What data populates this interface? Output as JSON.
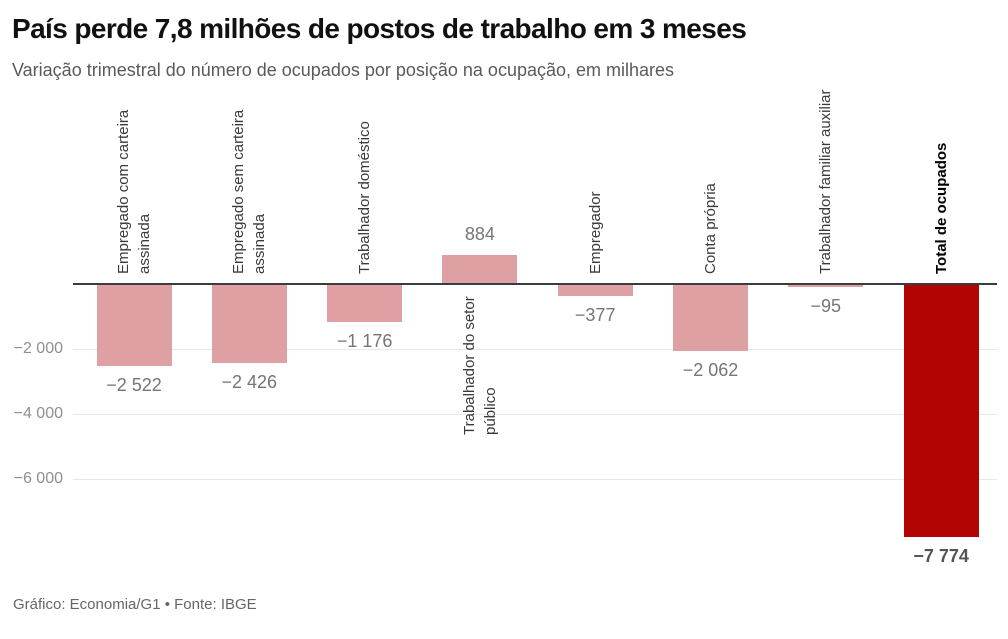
{
  "header": {
    "title": "País perde 7,8 milhões de postos de trabalho em 3 meses",
    "subtitle": "Variação trimestral do número de ocupados por posição na ocupação, em milhares"
  },
  "footer": {
    "credit": "Gráfico: Economia/G1 • Fonte: IBGE"
  },
  "chart_data": {
    "type": "bar",
    "title": "País perde 7,8 milhões de postos de trabalho em 3 meses",
    "subtitle": "Variação trimestral do número de ocupados por posição na ocupação, em milhares",
    "unit": "milhares",
    "categories": [
      "Empregado com carteira assinada",
      "Empregado sem carteira assinada",
      "Trabalhador doméstico",
      "Trabalhador do setor público",
      "Empregador",
      "Conta própria",
      "Trabalhador familiar auxiliar",
      "Total de ocupados"
    ],
    "values": [
      -2522,
      -2426,
      -1176,
      884,
      -377,
      -2062,
      -95,
      -7774
    ],
    "points": [
      {
        "category_lines": [
          "Empregado com carteira",
          "assinada"
        ],
        "value": -2522,
        "value_label": "−2 522",
        "emphasis": false,
        "label_below": false
      },
      {
        "category_lines": [
          "Empregado sem carteira",
          "assinada"
        ],
        "value": -2426,
        "value_label": "−2 426",
        "emphasis": false,
        "label_below": false
      },
      {
        "category_lines": [
          "Trabalhador doméstico"
        ],
        "value": -1176,
        "value_label": "−1 176",
        "emphasis": false,
        "label_below": false
      },
      {
        "category_lines": [
          "Trabalhador do setor",
          "público"
        ],
        "value": 884,
        "value_label": "884",
        "emphasis": false,
        "label_below": true
      },
      {
        "category_lines": [
          "Empregador"
        ],
        "value": -377,
        "value_label": "−377",
        "emphasis": false,
        "label_below": false
      },
      {
        "category_lines": [
          "Conta própria"
        ],
        "value": -2062,
        "value_label": "−2 062",
        "emphasis": false,
        "label_below": false
      },
      {
        "category_lines": [
          "Trabalhador familiar auxiliar"
        ],
        "value": -95,
        "value_label": "−95",
        "emphasis": false,
        "label_below": false
      },
      {
        "category_lines": [
          "Total de ocupados"
        ],
        "value": -7774,
        "value_label": "−7 774",
        "emphasis": true,
        "label_below": false
      }
    ],
    "y_axis": {
      "ticks": [
        {
          "value": -2000,
          "label": "−2 000"
        },
        {
          "value": -4000,
          "label": "−4 000"
        },
        {
          "value": -6000,
          "label": "−6 000"
        }
      ],
      "range": [
        -8000,
        1200
      ],
      "grid": true,
      "zero_line": true
    },
    "legend": "none",
    "colors": {
      "bar": "#dfa0a3",
      "total": "#b30404",
      "axis_line": "#3c3c3c",
      "grid_line": "#e8e8e8",
      "value_label": "#757575",
      "category_label": "#3a3a3a"
    }
  }
}
